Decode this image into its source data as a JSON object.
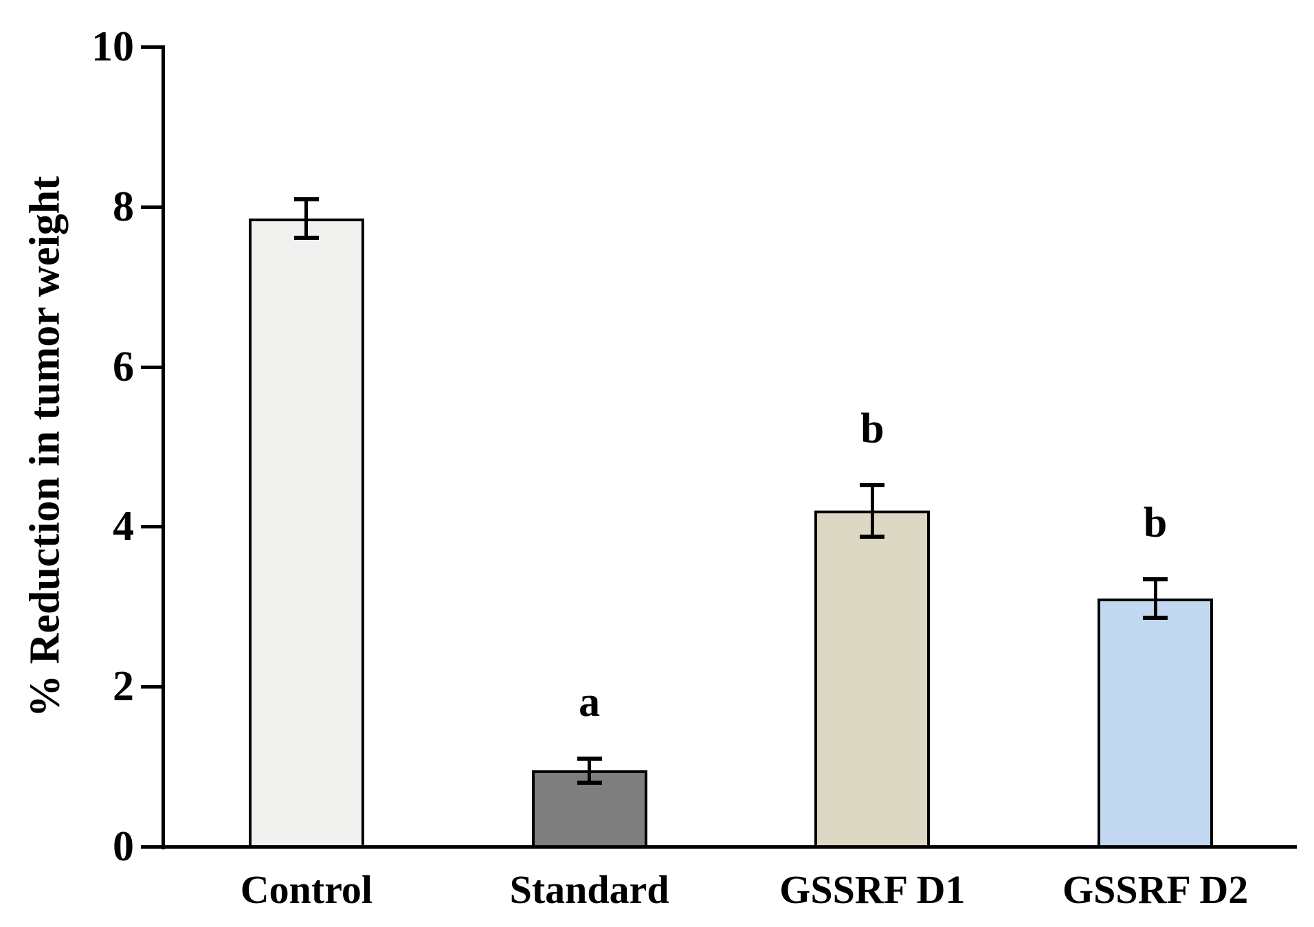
{
  "figure": {
    "background_color": "#ffffff",
    "axis_color": "#000000"
  },
  "chart_data": {
    "type": "bar",
    "title": "",
    "xlabel": "",
    "ylabel": "% Reduction in tumor weight",
    "ylim": [
      0,
      10
    ],
    "yticks": [
      "0",
      "2",
      "4",
      "6",
      "8",
      "10"
    ],
    "ytick_values": [
      0,
      2,
      4,
      6,
      8,
      10
    ],
    "grid": false,
    "legend_position": "none",
    "categories": [
      "Control",
      "Standard",
      "GSSRF D1",
      "GSSRF D2"
    ],
    "series": [
      {
        "name": "% Reduction in tumor weight",
        "values": [
          7.85,
          0.95,
          4.2,
          3.1
        ],
        "errors": [
          0.25,
          0.16,
          0.33,
          0.25
        ],
        "bar_colors": [
          "#f1f1f0",
          "#7e7e7e",
          "#ddd8c3",
          "#c2d8f0"
        ],
        "significance_letters": [
          "",
          "a",
          "b",
          "b"
        ]
      }
    ],
    "annotations": {
      "error_bars": "plus-minus caps, black",
      "bar_border_color": "#000000"
    }
  }
}
